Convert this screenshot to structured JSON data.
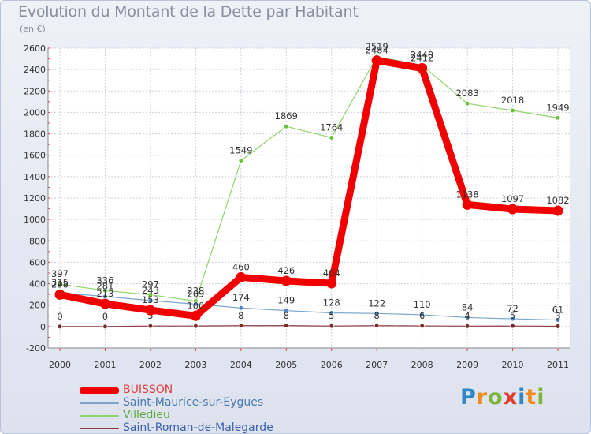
{
  "title": "Evolution du Montant de la Dette par Habitant",
  "unit": "(en €)",
  "logo": {
    "letters": [
      "P",
      "r",
      "o",
      "x",
      "i",
      "t",
      "i"
    ],
    "colors": [
      "#2e88c8",
      "#f28a1c",
      "#7ab63a",
      "#e23b2b",
      "#2e88c8",
      "#f28a1c",
      "#7ab63a"
    ]
  },
  "chart_data": {
    "type": "line",
    "x": [
      "2000",
      "2001",
      "2002",
      "2003",
      "2004",
      "2005",
      "2006",
      "2007",
      "2008",
      "2009",
      "2010",
      "2011"
    ],
    "ylim": [
      -200,
      2600
    ],
    "yticks": [
      -200,
      0,
      200,
      400,
      600,
      800,
      1000,
      1200,
      1400,
      1600,
      1800,
      2000,
      2200,
      2400,
      2600
    ],
    "grid": true,
    "legend_position": "bottom-left",
    "series": [
      {
        "name": "Villedieu",
        "color": "#8fd46a",
        "dot": "#6cc23a",
        "width": 1.2,
        "values": [
          397,
          336,
          297,
          238,
          1549,
          1869,
          1764,
          2519,
          2440,
          2083,
          2018,
          1949
        ],
        "labels": [
          "397",
          "336",
          "297",
          "238",
          "1549",
          "1869",
          "1764",
          "2519",
          "2440",
          "2083",
          "2018",
          "1949"
        ]
      },
      {
        "name": "Saint-Maurice-sur-Eygues",
        "color": "#7aa6cc",
        "dot": "#4a86c4",
        "width": 1.2,
        "values": [
          315,
          281,
          243,
          209,
          174,
          149,
          128,
          122,
          110,
          84,
          72,
          61
        ],
        "labels": [
          "315",
          "281",
          "243",
          "209",
          "174",
          "149",
          "128",
          "122",
          "110",
          "84",
          "72",
          "61"
        ]
      },
      {
        "name": "Saint-Roman-de-Malegarde",
        "color": "#8a3a3a",
        "dot": "#7a2a2a",
        "width": 1.2,
        "values": [
          0,
          0,
          5,
          5,
          8,
          8,
          5,
          8,
          6,
          4,
          5,
          3
        ],
        "labels": [
          "0",
          "0",
          "5",
          "5",
          "8",
          "8",
          "5",
          "8",
          "6",
          "4",
          "5",
          "3"
        ]
      },
      {
        "name": "BUISSON",
        "color": "#f00000",
        "dot": "#f00000",
        "width": 9,
        "values": [
          298,
          213,
          153,
          100,
          460,
          426,
          404,
          2484,
          2412,
          1138,
          1097,
          1082
        ],
        "labels": [
          "298",
          "213",
          "153",
          "100",
          "460",
          "426",
          "404",
          "2484",
          "2412",
          "1138",
          "1097",
          "1082"
        ]
      }
    ],
    "legend": [
      {
        "name": "BUISSON",
        "color": "#f00000",
        "text_color": "#e23a3a",
        "thickness": 8
      },
      {
        "name": "Saint-Maurice-sur-Eygues",
        "color": "#7aa6cc",
        "text_color": "#4a78b0",
        "thickness": 2
      },
      {
        "name": "Villedieu",
        "color": "#8fd46a",
        "text_color": "#5aa83a",
        "thickness": 2
      },
      {
        "name": "Saint-Roman-de-Malegarde",
        "color": "#8a3a3a",
        "text_color": "#3a5fb0",
        "thickness": 2
      }
    ]
  }
}
